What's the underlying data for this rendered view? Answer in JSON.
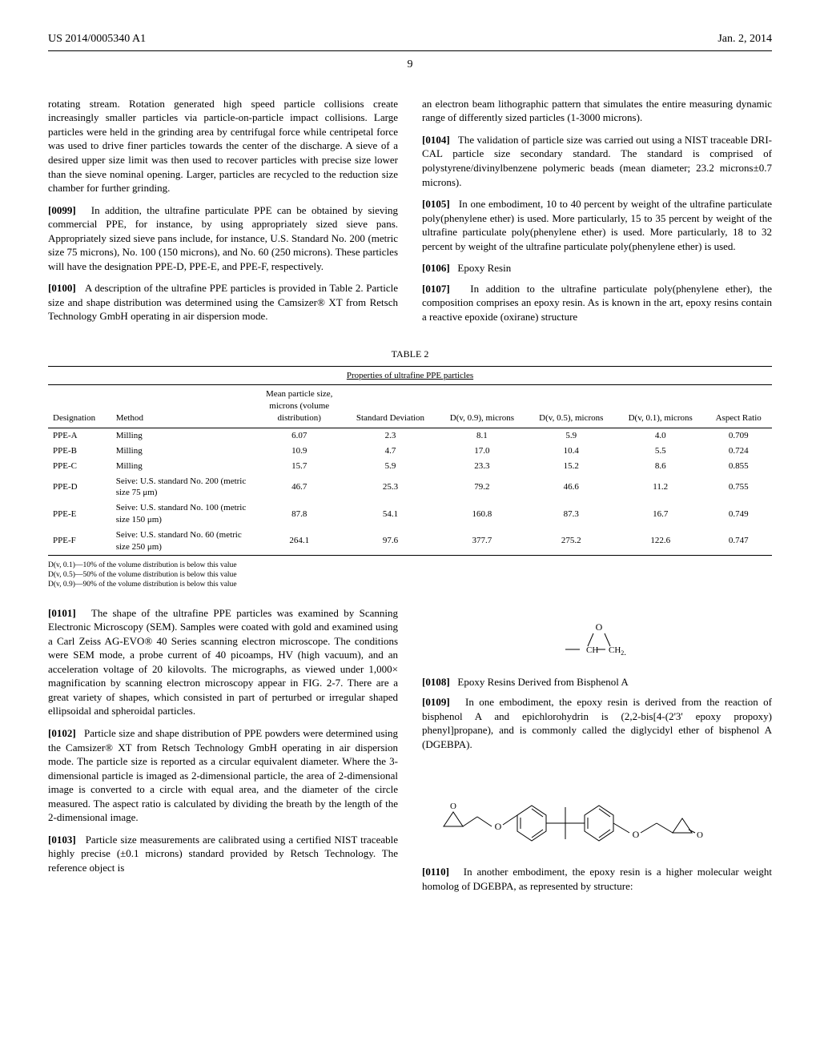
{
  "header": {
    "doc_id": "US 2014/0005340 A1",
    "date": "Jan. 2, 2014",
    "page": "9"
  },
  "col1": {
    "p_top": "rotating stream. Rotation generated high speed particle collisions create increasingly smaller particles via particle-on-particle impact collisions. Large particles were held in the grinding area by centrifugal force while centripetal force was used to drive finer particles towards the center of the discharge. A sieve of a desired upper size limit was then used to recover particles with precise size lower than the sieve nominal opening. Larger, particles are recycled to the reduction size chamber for further grinding.",
    "p0099_num": "[0099]",
    "p0099": "In addition, the ultrafine particulate PPE can be obtained by sieving commercial PPE, for instance, by using appropriately sized sieve pans. Appropriately sized sieve pans include, for instance, U.S. Standard No. 200 (metric size 75 microns), No. 100 (150 microns), and No. 60 (250 microns). These particles will have the designation PPE-D, PPE-E, and PPE-F, respectively.",
    "p0100_num": "[0100]",
    "p0100": "A description of the ultrafine PPE particles is provided in Table 2. Particle size and shape distribution was determined using the Camsizer® XT from Retsch Technology GmbH operating in air dispersion mode."
  },
  "col2": {
    "p_top": "an electron beam lithographic pattern that simulates the entire measuring dynamic range of differently sized particles (1-3000 microns).",
    "p0104_num": "[0104]",
    "p0104": "The validation of particle size was carried out using a NIST traceable DRI-CAL particle size secondary standard. The standard is comprised of polystyrene/divinylbenzene polymeric beads (mean diameter; 23.2 microns±0.7 microns).",
    "p0105_num": "[0105]",
    "p0105": "In one embodiment, 10 to 40 percent by weight of the ultrafine particulate poly(phenylene ether) is used. More particularly, 15 to 35 percent by weight of the ultrafine particulate poly(phenylene ether) is used. More particularly, 18 to 32 percent by weight of the ultrafine particulate poly(phenylene ether) is used.",
    "p0106_num": "[0106]",
    "p0106": "Epoxy Resin",
    "p0107_num": "[0107]",
    "p0107": "In addition to the ultrafine particulate poly(phenylene ether), the composition comprises an epoxy resin. As is known in the art, epoxy resins contain a reactive epoxide (oxirane) structure"
  },
  "table": {
    "label": "TABLE 2",
    "caption": "Properties of ultrafine PPE particles",
    "headers": [
      "Designation",
      "Method",
      "Mean particle size, microns (volume distribution)",
      "Standard Deviation",
      "D(v, 0.9), microns",
      "D(v, 0.5), microns",
      "D(v, 0.1), microns",
      "Aspect Ratio"
    ],
    "rows": [
      [
        "PPE-A",
        "Milling",
        "6.07",
        "2.3",
        "8.1",
        "5.9",
        "4.0",
        "0.709"
      ],
      [
        "PPE-B",
        "Milling",
        "10.9",
        "4.7",
        "17.0",
        "10.4",
        "5.5",
        "0.724"
      ],
      [
        "PPE-C",
        "Milling",
        "15.7",
        "5.9",
        "23.3",
        "15.2",
        "8.6",
        "0.855"
      ],
      [
        "PPE-D",
        "Seive: U.S. standard No. 200 (metric size 75 μm)",
        "46.7",
        "25.3",
        "79.2",
        "46.6",
        "11.2",
        "0.755"
      ],
      [
        "PPE-E",
        "Seive: U.S. standard No. 100 (metric size 150 μm)",
        "87.8",
        "54.1",
        "160.8",
        "87.3",
        "16.7",
        "0.749"
      ],
      [
        "PPE-F",
        "Seive: U.S. standard No. 60 (metric size 250 μm)",
        "264.1",
        "97.6",
        "377.7",
        "275.2",
        "122.6",
        "0.747"
      ]
    ],
    "footnotes": [
      "D(v, 0.1)—10% of the volume distribution is below this value",
      "D(v, 0.5)—50% of the volume distribution is below this value",
      "D(v, 0.9)—90% of the volume distribution is below this value"
    ]
  },
  "lower": {
    "col1": {
      "p0101_num": "[0101]",
      "p0101": "The shape of the ultrafine PPE particles was examined by Scanning Electronic Microscopy (SEM). Samples were coated with gold and examined using a Carl Zeiss AG-EVO® 40 Series scanning electron microscope. The conditions were SEM mode, a probe current of 40 picoamps, HV (high vacuum), and an acceleration voltage of 20 kilovolts. The micrographs, as viewed under 1,000× magnification by scanning electron microscopy appear in FIG. 2-7. There are a great variety of shapes, which consisted in part of perturbed or irregular shaped ellipsoidal and spheroidal particles.",
      "p0102_num": "[0102]",
      "p0102": "Particle size and shape distribution of PPE powders were determined using the Camsizer® XT from Retsch Technology GmbH operating in air dispersion mode. The particle size is reported as a circular equivalent diameter. Where the 3-dimensional particle is imaged as 2-dimensional particle, the area of 2-dimensional image is converted to a circle with equal area, and the diameter of the circle measured. The aspect ratio is calculated by dividing the breath by the length of the 2-dimensional image.",
      "p0103_num": "[0103]",
      "p0103": "Particle size measurements are calibrated using a certified NIST traceable highly precise (±0.1 microns) standard provided by Retsch Technology. The reference object is"
    },
    "col2": {
      "p0108_num": "[0108]",
      "p0108": "Epoxy Resins Derived from Bisphenol A",
      "p0109_num": "[0109]",
      "p0109": "In one embodiment, the epoxy resin is derived from the reaction of bisphenol A and epichlorohydrin is (2,2-bis[4-(2'3' epoxy propoxy) phenyl]propane), and is commonly called the diglycidyl ether of bisphenol A (DGEBPA).",
      "p0110_num": "[0110]",
      "p0110": "In another embodiment, the epoxy resin is a higher molecular weight homolog of DGEBPA, as represented by structure:"
    }
  }
}
